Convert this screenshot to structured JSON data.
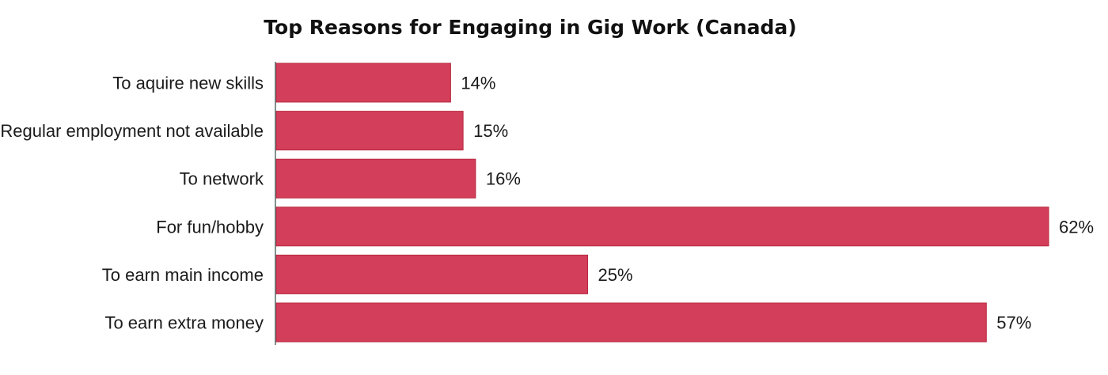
{
  "chart_data": {
    "type": "bar",
    "orientation": "horizontal",
    "title": "Top Reasons for Engaging in Gig Work (Canada)",
    "xlabel": "",
    "ylabel": "",
    "categories": [
      "To aquire new skills",
      "Regular employment not available",
      "To network",
      "For fun/hobby",
      "To earn main income",
      "To earn extra money"
    ],
    "values": [
      14,
      15,
      16,
      62,
      25,
      57
    ],
    "value_labels": [
      "14%",
      "15%",
      "16%",
      "62%",
      "25%",
      "57%"
    ],
    "xlim": [
      0,
      62
    ],
    "grid": false,
    "legend": "none",
    "bar_color": "#d33f5a",
    "bar_border_color": "#b8283f",
    "axis_color": "#5a6a6a"
  }
}
